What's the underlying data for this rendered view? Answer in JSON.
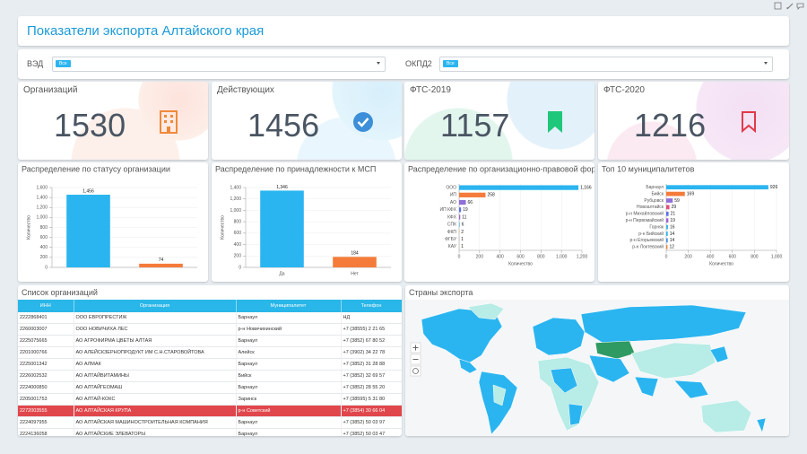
{
  "header": {
    "title": "Показатели экспорта Алтайского края"
  },
  "filters": [
    {
      "label": "ВЭД",
      "value": "Все"
    },
    {
      "label": "ОКПД2",
      "value": "Все"
    }
  ],
  "kpis": [
    {
      "label": "Организаций",
      "value": 1530
    },
    {
      "label": "Действующих",
      "value": 1456
    },
    {
      "label": "ФТС-2019",
      "value": 1157
    },
    {
      "label": "ФТС-2020",
      "value": 1216
    }
  ],
  "chart_data": [
    {
      "type": "bar",
      "orientation": "vertical",
      "title": "Распределение по статусу организации",
      "y_label": "Количество",
      "categories": [
        null,
        null
      ],
      "values": [
        1456,
        74
      ],
      "value_labels": [
        "1,456",
        "74"
      ],
      "colors": [
        "#2bb5f0",
        "#f47b3a"
      ],
      "ylim": [
        0,
        1600
      ],
      "yticks": [
        0,
        200,
        400,
        600,
        800,
        {
          "value": 1000,
          "label": "1,000"
        },
        {
          "value": 1200,
          "label": "1,200"
        },
        {
          "value": 1400,
          "label": "1,400"
        },
        {
          "value": 1600,
          "label": "1,600"
        }
      ],
      "grid": true
    },
    {
      "type": "bar",
      "orientation": "vertical",
      "title": "Распределение по принадлежности к МСП",
      "y_label": "Количество",
      "categories": [
        "Да",
        "Нет"
      ],
      "values": [
        1346,
        184
      ],
      "value_labels": [
        "1,346",
        "184"
      ],
      "colors": [
        "#2bb5f0",
        "#f47b3a"
      ],
      "ylim": [
        0,
        1400
      ],
      "yticks": [
        0,
        200,
        400,
        600,
        800,
        {
          "value": 1000,
          "label": "1,000"
        },
        {
          "value": 1200,
          "label": "1,200"
        },
        {
          "value": 1400,
          "label": "1,400"
        }
      ],
      "grid": true
    },
    {
      "type": "bar",
      "orientation": "horizontal",
      "title": "Распределение по организационно-правовой форме",
      "x_label": "Количество",
      "categories": [
        "ООО",
        "ИП",
        "АО",
        "ИП КФХ",
        "КФХ",
        "СПК",
        "ФКП",
        "ФГБУ",
        "КАУ"
      ],
      "values": [
        1166,
        258,
        66,
        19,
        11,
        6,
        2,
        1,
        1
      ],
      "value_labels": [
        "1,166",
        "258",
        "66",
        "19",
        "11",
        "6",
        "2",
        "1",
        "1"
      ],
      "colors": [
        "#2bb5f0",
        "#f47b3a",
        "#8f6fd8",
        "#5b6ff0",
        "#9c5fd6",
        "#3fb6e0",
        "#f0a040",
        "#d94f7a",
        "#f08a3a"
      ],
      "xlim": [
        0,
        1200
      ],
      "xticks": [
        0,
        200,
        400,
        600,
        800,
        {
          "value": 1000,
          "label": "1,000"
        },
        {
          "value": 1200,
          "label": "1,200"
        }
      ],
      "grid": true
    },
    {
      "type": "bar",
      "orientation": "horizontal",
      "title": "Топ 10 муниципалитетов",
      "x_label": "Количество",
      "categories": [
        "Барнаул",
        "Бийск",
        "Рубцовск",
        "Новоалтайск",
        "р-н Михайловский",
        "р-н Первомайский",
        "Горняк",
        "р-н Бийский",
        "р-н Егорьевский",
        "р-н Локтевский"
      ],
      "values": [
        926,
        169,
        59,
        29,
        21,
        19,
        16,
        14,
        14,
        12
      ],
      "colors": [
        "#2bb5f0",
        "#f47b3a",
        "#8f6fd8",
        "#e0507a",
        "#5b6ff0",
        "#9c5fd6",
        "#3fb6e0",
        "#2bb5f0",
        "#4a90e2",
        "#f08a3a"
      ],
      "xlim": [
        0,
        1000
      ],
      "xticks": [
        0,
        200,
        400,
        600,
        800,
        {
          "value": 1000,
          "label": "1,000"
        }
      ],
      "grid": true
    }
  ],
  "table": {
    "title": "Список организаций",
    "columns": [
      "ИНН",
      "Организация",
      "Муниципалитет",
      "Телефон"
    ],
    "selected_row": 8,
    "rows": [
      [
        "2222868401",
        "ООО ЕВРОПРЕСТИЖ",
        "Барнаул",
        "НД"
      ],
      [
        "2260003007",
        "ООО НОВИЧИХА ЛЕС",
        "р-н Новичихинский",
        "+7 (38555) 2 21 65"
      ],
      [
        "2225075665",
        "АО АГРОФИРМА ЦВЕТЫ АЛТАЯ",
        "Барнаул",
        "+7 (3852) 67 80 52"
      ],
      [
        "2201000766",
        "АО АЛЕЙСКЗЕРНОПРОДУКТ ИМ С.Н.СТАРОВОЙТОВА",
        "Алейск",
        "+7 (3902) 34 22 78"
      ],
      [
        "2225001342",
        "АО АЛМАК",
        "Барнаул",
        "+7 (3852) 31 28 88"
      ],
      [
        "2226002532",
        "АО АЛТАЙВИТАМИНЫ",
        "Бийск",
        "+7 (3852) 32 69 57"
      ],
      [
        "2224000850",
        "АО АЛТАЙГЕОМАШ",
        "Барнаул",
        "+7 (3852) 28 55 20"
      ],
      [
        "2205001753",
        "АО АЛТАЙ-КОКС",
        "Заринск",
        "+7 (38595) 5 31 80"
      ],
      [
        "2272003555",
        "АО АЛТАЙСКАЯ КРУПА",
        "р-н Советский",
        "+7 (3854) 30 66 04"
      ],
      [
        "2224097955",
        "АО АЛТАЙСКАЯ МАШИНОСТРОИТЕЛЬНАЯ КОМПАНИЯ",
        "Барнаул",
        "+7 (3852) 50 03 97"
      ],
      [
        "2224136058",
        "АО АЛТАЙСКИЕ ЭЛЕВАТОРЫ",
        "Барнаул",
        "+7 (3852) 50 03 47"
      ]
    ]
  },
  "map": {
    "title": "Страны экспорта"
  }
}
